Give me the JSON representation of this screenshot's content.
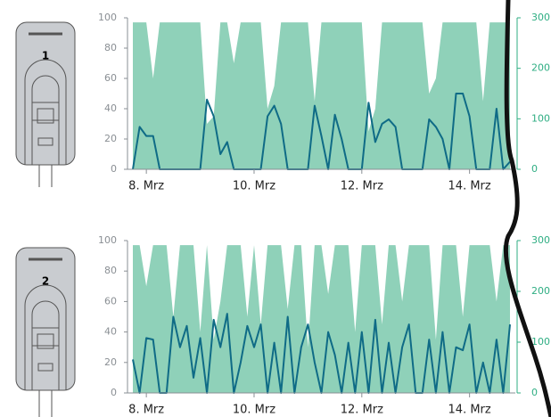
{
  "devices": [
    "1",
    "2"
  ],
  "chart_data": [
    {
      "type": "area",
      "x": [
        7.75,
        7.875,
        8,
        8.125,
        8.25,
        8.375,
        8.5,
        8.625,
        8.75,
        8.875,
        9,
        9.125,
        9.25,
        9.375,
        9.5,
        9.625,
        9.75,
        9.875,
        10,
        10.125,
        10.25,
        10.375,
        10.5,
        10.625,
        10.75,
        10.875,
        11,
        11.125,
        11.25,
        11.375,
        11.5,
        11.625,
        11.75,
        11.875,
        12,
        12.125,
        12.25,
        12.375,
        12.5,
        12.625,
        12.75,
        12.875,
        13,
        13.125,
        13.25,
        13.375,
        13.5,
        13.625,
        13.75,
        13.875,
        14,
        14.125,
        14.25,
        14.375,
        14.5,
        14.625,
        14.75
      ],
      "series": [
        {
          "color": "#8fd1b9",
          "filled": true,
          "values": [
            97,
            97,
            97,
            60,
            97,
            97,
            97,
            97,
            97,
            97,
            97,
            30,
            35,
            97,
            97,
            70,
            97,
            97,
            97,
            97,
            40,
            55,
            97,
            97,
            97,
            97,
            97,
            45,
            97,
            97,
            97,
            97,
            97,
            97,
            97,
            25,
            40,
            97,
            97,
            97,
            97,
            97,
            97,
            97,
            50,
            60,
            97,
            97,
            97,
            97,
            97,
            97,
            45,
            97,
            97,
            97,
            97
          ]
        },
        {
          "color": "#0f6b86",
          "filled": false,
          "values": [
            0,
            28,
            22,
            22,
            0,
            0,
            0,
            0,
            0,
            0,
            0,
            46,
            35,
            10,
            18,
            0,
            0,
            0,
            0,
            0,
            35,
            42,
            30,
            0,
            0,
            0,
            0,
            42,
            22,
            0,
            36,
            20,
            0,
            0,
            0,
            44,
            18,
            30,
            33,
            28,
            0,
            0,
            0,
            0,
            33,
            28,
            20,
            0,
            50,
            50,
            35,
            0,
            0,
            0,
            40,
            0,
            5
          ]
        }
      ],
      "xlim": [
        7.65,
        14.85
      ],
      "xticks": [
        {
          "value": 8,
          "label": "8. Mrz"
        },
        {
          "value": 10,
          "label": "10. Mrz"
        },
        {
          "value": 12,
          "label": "12. Mrz"
        },
        {
          "value": 14,
          "label": "14. Mrz"
        }
      ],
      "ylim": [
        0,
        100
      ],
      "yticks": [
        0,
        20,
        40,
        60,
        80,
        100
      ],
      "y2lim": [
        0,
        300
      ],
      "y2ticks": [
        0,
        100,
        200,
        300
      ]
    },
    {
      "type": "area",
      "x": [
        7.75,
        7.875,
        8,
        8.125,
        8.25,
        8.375,
        8.5,
        8.625,
        8.75,
        8.875,
        9,
        9.125,
        9.25,
        9.375,
        9.5,
        9.625,
        9.75,
        9.875,
        10,
        10.125,
        10.25,
        10.375,
        10.5,
        10.625,
        10.75,
        10.875,
        11,
        11.125,
        11.25,
        11.375,
        11.5,
        11.625,
        11.75,
        11.875,
        12,
        12.125,
        12.25,
        12.375,
        12.5,
        12.625,
        12.75,
        12.875,
        13,
        13.125,
        13.25,
        13.375,
        13.5,
        13.625,
        13.75,
        13.875,
        14,
        14.125,
        14.25,
        14.375,
        14.5,
        14.625,
        14.75
      ],
      "series": [
        {
          "color": "#8fd1b9",
          "filled": true,
          "values": [
            97,
            97,
            70,
            97,
            97,
            97,
            50,
            97,
            97,
            97,
            40,
            97,
            35,
            60,
            97,
            97,
            97,
            50,
            97,
            45,
            97,
            97,
            97,
            55,
            97,
            97,
            30,
            97,
            97,
            65,
            97,
            97,
            97,
            40,
            97,
            97,
            97,
            45,
            97,
            97,
            60,
            97,
            97,
            97,
            97,
            35,
            97,
            97,
            97,
            50,
            97,
            97,
            97,
            97,
            60,
            97,
            97
          ]
        },
        {
          "color": "#0f6b86",
          "filled": false,
          "values": [
            22,
            0,
            36,
            35,
            0,
            0,
            50,
            30,
            44,
            10,
            36,
            0,
            48,
            30,
            52,
            0,
            20,
            44,
            30,
            45,
            0,
            33,
            0,
            50,
            0,
            30,
            45,
            20,
            0,
            40,
            25,
            0,
            33,
            0,
            40,
            0,
            48,
            0,
            33,
            0,
            30,
            45,
            0,
            0,
            35,
            0,
            40,
            0,
            30,
            28,
            45,
            0,
            20,
            0,
            35,
            0,
            45
          ]
        }
      ],
      "xlim": [
        7.65,
        14.85
      ],
      "xticks": [
        {
          "value": 8,
          "label": "8. Mrz"
        },
        {
          "value": 10,
          "label": "10. Mrz"
        },
        {
          "value": 12,
          "label": "12. Mrz"
        },
        {
          "value": 14,
          "label": "14. Mrz"
        }
      ],
      "ylim": [
        0,
        100
      ],
      "yticks": [
        0,
        20,
        40,
        60,
        80,
        100
      ],
      "y2lim": [
        0,
        300
      ],
      "y2ticks": [
        0,
        100,
        200,
        300
      ]
    }
  ]
}
